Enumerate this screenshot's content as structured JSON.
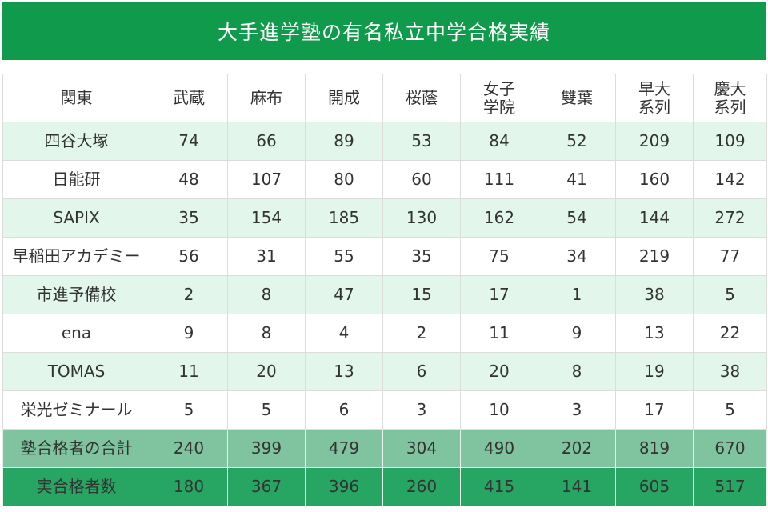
{
  "title": "大手進学塾の有名私立中学合格実績",
  "colors": {
    "title_bg": "#109a4b",
    "light_row": "#e2f6ec",
    "total_row": "#7fc39f",
    "actual_row": "#27a563"
  },
  "table": {
    "headers": [
      "関東",
      "武蔵",
      "麻布",
      "開成",
      "桜蔭",
      "女子\n学院",
      "雙葉",
      "早大\n系列",
      "慶大\n系列"
    ],
    "rows": [
      {
        "name": "四谷大塚",
        "values": [
          "74",
          "66",
          "89",
          "53",
          "84",
          "52",
          "209",
          "109"
        ]
      },
      {
        "name": "日能研",
        "values": [
          "48",
          "107",
          "80",
          "60",
          "111",
          "41",
          "160",
          "142"
        ]
      },
      {
        "name": "SAPIX",
        "values": [
          "35",
          "154",
          "185",
          "130",
          "162",
          "54",
          "144",
          "272"
        ]
      },
      {
        "name": "早稲田アカデミー",
        "values": [
          "56",
          "31",
          "55",
          "35",
          "75",
          "34",
          "219",
          "77"
        ]
      },
      {
        "name": "市進予備校",
        "values": [
          "2",
          "8",
          "47",
          "15",
          "17",
          "1",
          "38",
          "5"
        ]
      },
      {
        "name": "ena",
        "values": [
          "9",
          "8",
          "4",
          "2",
          "11",
          "9",
          "13",
          "22"
        ]
      },
      {
        "name": "TOMAS",
        "values": [
          "11",
          "20",
          "13",
          "6",
          "20",
          "8",
          "19",
          "38"
        ]
      },
      {
        "name": "栄光ゼミナール",
        "values": [
          "5",
          "5",
          "6",
          "3",
          "10",
          "3",
          "17",
          "5"
        ]
      },
      {
        "name": "塾合格者の合計",
        "values": [
          "240",
          "399",
          "479",
          "304",
          "490",
          "202",
          "819",
          "670"
        ]
      },
      {
        "name": "実合格者数",
        "values": [
          "180",
          "367",
          "396",
          "260",
          "415",
          "141",
          "605",
          "517"
        ]
      }
    ]
  }
}
